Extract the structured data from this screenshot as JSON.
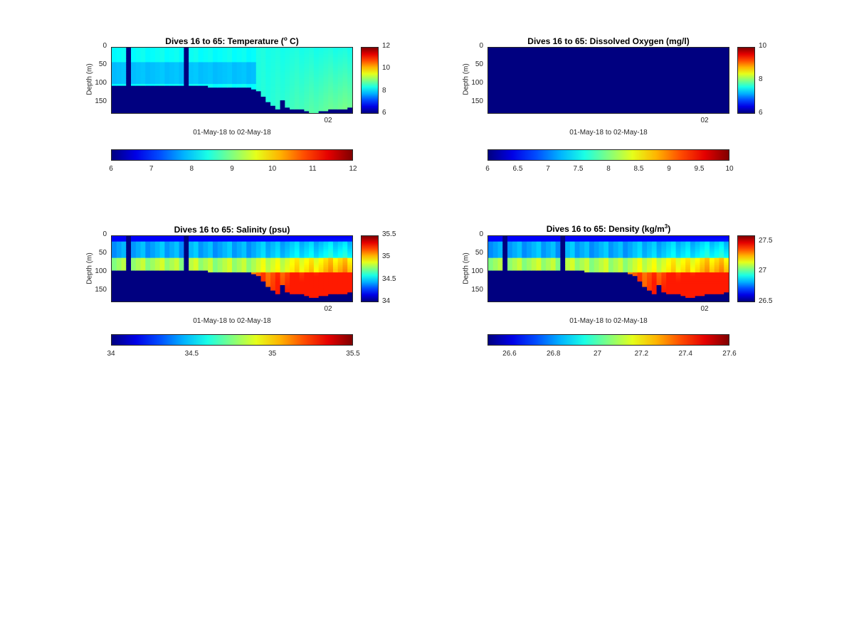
{
  "chart_data": [
    {
      "id": "temp",
      "type": "heatmap",
      "title": "Dives 16 to 65: Temperature (",
      "title_sup": "o",
      "title_after": " C)",
      "ylabel": "Depth (m)",
      "xlabel": "01-May-18 to 02-May-18",
      "x_tick_labels": [
        "02"
      ],
      "y_tick_labels": [
        "0",
        "50",
        "100",
        "150"
      ],
      "ylim": [
        0,
        180
      ],
      "clim": [
        6,
        12
      ],
      "colorbar_ticks": [
        "12",
        "10",
        "8",
        "6"
      ],
      "colorbar_values": [
        12,
        10,
        8,
        6
      ],
      "h_colorbar_ticks": [
        "6",
        "7",
        "8",
        "9",
        "10",
        "11",
        "12"
      ],
      "h_colorbar_values": [
        6,
        7,
        8,
        9,
        10,
        11,
        12
      ],
      "colormap": "jet",
      "n_dives": 50,
      "surface_value": 8.3,
      "mid_value": 7.9,
      "deep_value": 8.2,
      "bottom_fill": 6,
      "max_depth_profile": [
        105,
        105,
        105,
        105,
        105,
        105,
        105,
        104,
        104,
        104,
        104,
        104,
        104,
        104,
        104,
        104,
        104,
        104,
        104,
        104,
        110,
        110,
        108,
        108,
        108,
        108,
        110,
        110,
        110,
        115,
        120,
        135,
        150,
        160,
        170,
        145,
        165,
        170,
        170,
        172,
        175,
        178,
        178,
        176,
        176,
        172,
        170,
        170,
        168,
        165
      ]
    },
    {
      "id": "do",
      "type": "heatmap",
      "title": "Dives 16 to 65: Dissolved Oxygen (mg/l)",
      "ylabel": "Depth (m)",
      "xlabel": "01-May-18 to 02-May-18",
      "x_tick_labels": [
        "02"
      ],
      "y_tick_labels": [
        "0",
        "50",
        "100",
        "150"
      ],
      "ylim": [
        0,
        180
      ],
      "clim": [
        6,
        10
      ],
      "colorbar_ticks": [
        "10",
        "8",
        "6"
      ],
      "colorbar_values": [
        10,
        8,
        6
      ],
      "h_colorbar_ticks": [
        "6",
        "6.5",
        "7",
        "7.5",
        "8",
        "8.5",
        "9",
        "9.5",
        "10"
      ],
      "h_colorbar_values": [
        6,
        6.5,
        7,
        7.5,
        8,
        8.5,
        9,
        9.5,
        10
      ],
      "colormap": "jet",
      "uniform_value": 6
    },
    {
      "id": "sal",
      "type": "heatmap",
      "title": "Dives 16 to 65: Salinity (psu)",
      "ylabel": "Depth (m)",
      "xlabel": "01-May-18 to 02-May-18",
      "x_tick_labels": [
        "02"
      ],
      "y_tick_labels": [
        "0",
        "50",
        "100",
        "150"
      ],
      "ylim": [
        0,
        180
      ],
      "clim": [
        34,
        35.5
      ],
      "colorbar_ticks": [
        "35.5",
        "35",
        "34.5",
        "34"
      ],
      "colorbar_values": [
        35.5,
        35,
        34.5,
        34
      ],
      "h_colorbar_ticks": [
        "34",
        "34.5",
        "35",
        "35.5"
      ],
      "h_colorbar_values": [
        34,
        34.5,
        35,
        35.5
      ],
      "colormap": "jet",
      "bottom_fill": 34
    },
    {
      "id": "dens",
      "type": "heatmap",
      "title": "Dives 16 to 65: Density (kg/m",
      "title_sup": "3",
      "title_after": ")",
      "ylabel": "Depth (m)",
      "xlabel": "01-May-18 to 02-May-18",
      "x_tick_labels": [
        "02"
      ],
      "y_tick_labels": [
        "0",
        "50",
        "100",
        "150"
      ],
      "ylim": [
        0,
        180
      ],
      "clim": [
        26.5,
        27.6
      ],
      "colorbar_ticks": [
        "27.5",
        "27",
        "26.5"
      ],
      "colorbar_values": [
        27.5,
        27,
        26.5
      ],
      "h_colorbar_ticks": [
        "26.6",
        "26.8",
        "27",
        "27.2",
        "27.4",
        "27.6"
      ],
      "h_colorbar_values": [
        26.6,
        26.8,
        27,
        27.2,
        27.4,
        27.6
      ],
      "colormap": "jet",
      "bottom_fill": 26.5
    }
  ]
}
